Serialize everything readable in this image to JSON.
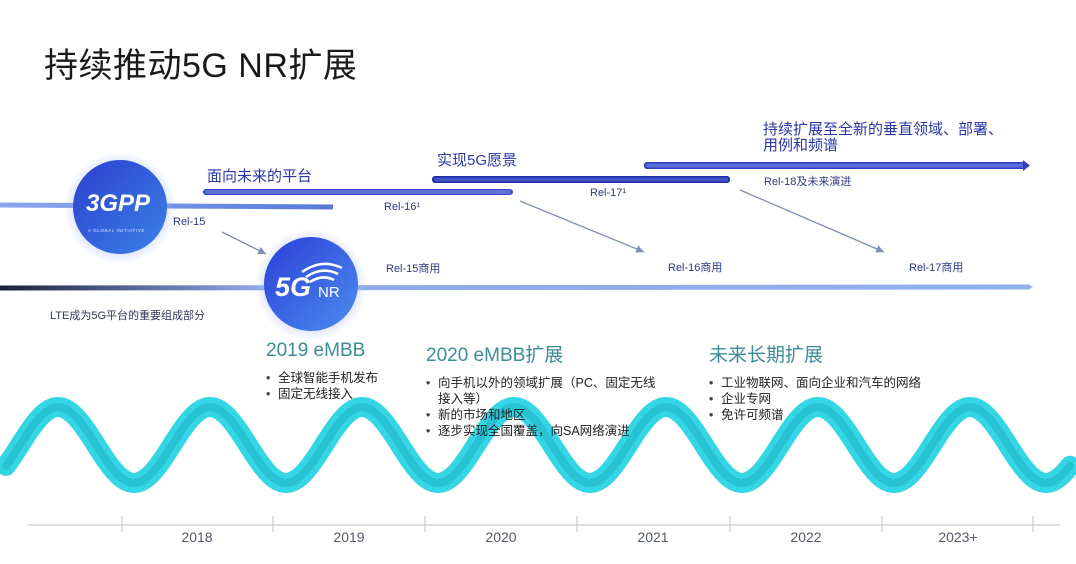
{
  "title": "持续推动5G NR扩展",
  "phases": {
    "p1": "面向未来的平台",
    "p2": "实现5G愿景",
    "p3_line1": "持续扩展至全新的垂直领域、部署、",
    "p3_line2": "用例和频谱"
  },
  "releases": {
    "rel15": "Rel-15",
    "rel16": "Rel-16¹",
    "rel17": "Rel-17¹",
    "rel18": "Rel-18及未来演进",
    "rel15c": "Rel-15商用",
    "rel16c": "Rel-16商用",
    "rel17c": "Rel-17商用"
  },
  "lte_note": "LTE成为5G平台的重要组成部分",
  "logos": {
    "gpp_main": "3GPP",
    "gpp_sub": "A GLOBAL INITIATIVE",
    "nr_5g": "5G",
    "nr_text": "NR"
  },
  "sections": [
    {
      "title": "2019 eMBB",
      "bullets": [
        "全球智能手机发布",
        "固定无线接入"
      ]
    },
    {
      "title": "2020 eMBB扩展",
      "bullets": [
        "向手机以外的领域扩展（PC、固定无线",
        "接入等）",
        "新的市场和地区",
        "逐步实现全国覆盖，向SA网络演进"
      ]
    },
    {
      "title": "未来长期扩展",
      "bullets": [
        "工业物联网、面向企业和汽车的网络",
        "企业专网",
        "免许可频谱"
      ]
    }
  ],
  "bullet_dot": "•",
  "years": [
    "2018",
    "2019",
    "2020",
    "2021",
    "2022",
    "2023+"
  ],
  "colors": {
    "accent_blue": "#2a36a8",
    "wave_cyan": "#29d4e4",
    "section_teal": "#3a8d9a"
  }
}
